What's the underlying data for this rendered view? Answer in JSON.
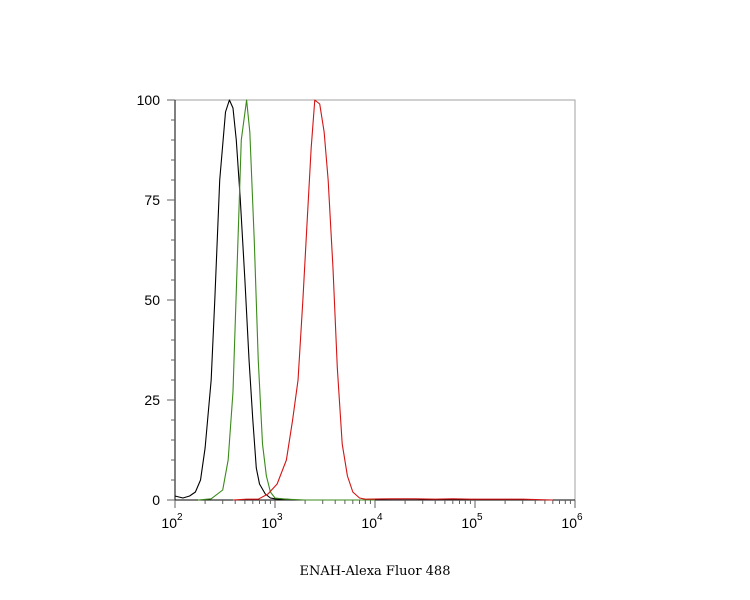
{
  "chart_data": {
    "type": "line",
    "xlabel": "ENAH-Alexa Fluor 488",
    "ylabel": "",
    "x_scale": "log",
    "xlim": [
      100,
      1000000
    ],
    "ylim": [
      0,
      100
    ],
    "y_ticks": [
      {
        "value": 0,
        "label": "0"
      },
      {
        "value": 25,
        "label": "25"
      },
      {
        "value": 50,
        "label": "50"
      },
      {
        "value": 75,
        "label": "75"
      },
      {
        "value": 100,
        "label": "100"
      }
    ],
    "x_ticks": [
      {
        "value": 100,
        "base": "10",
        "exp": "2"
      },
      {
        "value": 1000,
        "base": "10",
        "exp": "3"
      },
      {
        "value": 10000,
        "base": "10",
        "exp": "4"
      },
      {
        "value": 100000,
        "base": "10",
        "exp": "5"
      },
      {
        "value": 1000000,
        "base": "10",
        "exp": "6"
      }
    ],
    "grid": false,
    "series": [
      {
        "color": "#000000",
        "points": [
          [
            100,
            1
          ],
          [
            120,
            0.5
          ],
          [
            140,
            1
          ],
          [
            160,
            2
          ],
          [
            180,
            5
          ],
          [
            200,
            13
          ],
          [
            230,
            30
          ],
          [
            250,
            50
          ],
          [
            280,
            80
          ],
          [
            320,
            97
          ],
          [
            350,
            100
          ],
          [
            380,
            98
          ],
          [
            410,
            90
          ],
          [
            450,
            75
          ],
          [
            500,
            55
          ],
          [
            550,
            35
          ],
          [
            600,
            20
          ],
          [
            650,
            8
          ],
          [
            700,
            4
          ],
          [
            800,
            1.5
          ],
          [
            900,
            0.5
          ],
          [
            1000,
            0.3
          ],
          [
            1300,
            0.2
          ],
          [
            1600,
            0
          ],
          [
            10000,
            0
          ]
        ]
      },
      {
        "color": "#3a8a1a",
        "points": [
          [
            170,
            0
          ],
          [
            230,
            0.3
          ],
          [
            300,
            2.5
          ],
          [
            340,
            10
          ],
          [
            380,
            27
          ],
          [
            420,
            60
          ],
          [
            460,
            90
          ],
          [
            520,
            100
          ],
          [
            560,
            92
          ],
          [
            620,
            65
          ],
          [
            680,
            35
          ],
          [
            750,
            14
          ],
          [
            820,
            6
          ],
          [
            900,
            2
          ],
          [
            1000,
            0.5
          ],
          [
            1300,
            0.2
          ],
          [
            2000,
            0
          ],
          [
            10000,
            0
          ]
        ]
      },
      {
        "color": "#d41414",
        "points": [
          [
            380,
            0
          ],
          [
            520,
            0.2
          ],
          [
            680,
            0.2
          ],
          [
            850,
            1.5
          ],
          [
            1050,
            4
          ],
          [
            1300,
            10
          ],
          [
            1500,
            20
          ],
          [
            1700,
            30
          ],
          [
            1900,
            50
          ],
          [
            2100,
            70
          ],
          [
            2300,
            88
          ],
          [
            2500,
            100
          ],
          [
            2800,
            99
          ],
          [
            3100,
            92
          ],
          [
            3400,
            80
          ],
          [
            3800,
            58
          ],
          [
            4200,
            33
          ],
          [
            4700,
            14
          ],
          [
            5300,
            6
          ],
          [
            6000,
            2
          ],
          [
            7000,
            0.5
          ],
          [
            8000,
            0.2
          ],
          [
            15000,
            0.3
          ],
          [
            25000,
            0.3
          ],
          [
            40000,
            0.2
          ],
          [
            60000,
            0.3
          ],
          [
            90000,
            0.2
          ],
          [
            150000,
            0.2
          ],
          [
            300000,
            0.2
          ],
          [
            600000,
            0
          ]
        ]
      }
    ]
  }
}
